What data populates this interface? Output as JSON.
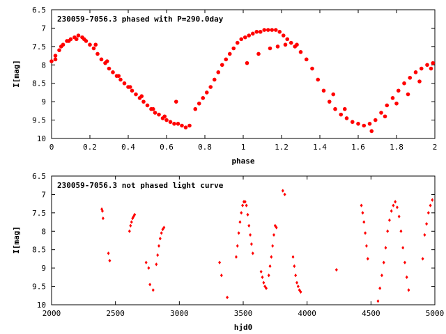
{
  "colors": {
    "points": "#ff0000",
    "frame": "#000000",
    "background": "#ffffff"
  },
  "chart_data": [
    {
      "type": "scatter",
      "title": "230059-7056.3 phased with P=290.0day",
      "xlabel": "phase",
      "ylabel": "I[mag]",
      "xlim": [
        0,
        2
      ],
      "ylim": [
        6.5,
        10
      ],
      "y_inverted": true,
      "grid": false,
      "marker": "circle",
      "xticks": [
        "0",
        "0.2",
        "0.4",
        "0.6",
        "0.8",
        "1",
        "1.2",
        "1.4",
        "1.6",
        "1.8",
        "2"
      ],
      "yticks": [
        "6.5",
        "7",
        "7.5",
        "8",
        "8.5",
        "9",
        "9.5",
        "10"
      ],
      "series": [
        {
          "x": [
            0.0,
            0.02,
            0.04,
            0.06,
            0.08,
            0.1,
            0.12,
            0.14,
            0.16,
            0.18,
            0.2,
            0.22,
            0.24,
            0.26,
            0.28,
            0.3,
            0.32,
            0.34,
            0.36,
            0.38,
            0.4,
            0.42,
            0.44,
            0.46,
            0.48,
            0.5,
            0.52,
            0.54,
            0.56,
            0.58,
            0.6,
            0.62,
            0.64,
            0.66,
            0.68,
            0.7,
            0.72,
            0.75,
            0.77,
            0.79,
            0.81,
            0.83,
            0.85,
            0.87,
            0.89,
            0.91,
            0.93,
            0.95,
            0.97,
            0.99,
            1.01,
            1.03,
            1.05,
            1.07,
            1.09,
            1.11,
            1.13,
            1.15,
            1.17,
            1.19,
            1.21,
            1.23,
            1.25,
            1.27,
            1.3,
            1.33,
            1.36,
            1.39,
            1.42,
            1.45,
            1.48,
            1.51,
            1.54,
            1.57,
            1.6,
            1.63,
            1.66,
            1.69,
            1.72,
            1.75,
            1.78,
            1.81,
            1.84,
            1.87,
            1.9,
            1.93,
            1.96,
            1.99,
            0.02,
            0.05,
            0.09,
            0.13,
            0.17,
            0.23,
            0.29,
            0.35,
            0.41,
            0.47,
            0.53,
            0.59,
            0.65,
            1.02,
            1.08,
            1.14,
            1.18,
            1.22,
            1.28,
            1.47,
            1.53,
            1.67,
            1.74,
            1.8,
            1.86,
            1.92,
            1.98
          ],
          "y": [
            7.9,
            7.75,
            7.6,
            7.45,
            7.35,
            7.3,
            7.25,
            7.2,
            7.25,
            7.35,
            7.45,
            7.55,
            7.7,
            7.85,
            7.95,
            8.1,
            8.2,
            8.3,
            8.4,
            8.5,
            8.6,
            8.7,
            8.8,
            8.9,
            9.0,
            9.1,
            9.2,
            9.3,
            9.35,
            9.45,
            9.5,
            9.55,
            9.6,
            9.6,
            9.65,
            9.7,
            9.65,
            9.2,
            9.05,
            8.9,
            8.75,
            8.6,
            8.4,
            8.2,
            8.0,
            7.85,
            7.7,
            7.55,
            7.4,
            7.3,
            7.25,
            7.2,
            7.15,
            7.1,
            7.1,
            7.05,
            7.05,
            7.05,
            7.05,
            7.1,
            7.2,
            7.3,
            7.4,
            7.5,
            7.65,
            7.85,
            8.1,
            8.4,
            8.7,
            9.0,
            9.2,
            9.35,
            9.45,
            9.55,
            9.6,
            9.65,
            9.6,
            9.5,
            9.3,
            9.1,
            8.9,
            8.7,
            8.5,
            8.35,
            8.2,
            8.1,
            8.0,
            7.95,
            7.85,
            7.5,
            7.35,
            7.3,
            7.3,
            7.45,
            7.9,
            8.3,
            8.6,
            8.85,
            9.2,
            9.4,
            9.0,
            7.95,
            7.7,
            7.55,
            7.5,
            7.45,
            7.45,
            8.8,
            9.2,
            9.8,
            9.4,
            9.05,
            8.8,
            8.45,
            8.1
          ]
        }
      ]
    },
    {
      "type": "scatter",
      "title": "230059-7056.3 not phased light curve",
      "xlabel": "hjd0",
      "ylabel": "I[mag]",
      "xlim": [
        2000,
        5000
      ],
      "ylim": [
        6.5,
        10
      ],
      "y_inverted": true,
      "grid": false,
      "marker": "diamond",
      "xticks": [
        "2000",
        "2500",
        "3000",
        "3500",
        "4000",
        "4500",
        "5000"
      ],
      "yticks": [
        "6.5",
        "7",
        "7.5",
        "8",
        "8.5",
        "9",
        "9.5",
        "10"
      ],
      "series": [
        {
          "x": [
            2393,
            2398,
            2403,
            2445,
            2455,
            2610,
            2618,
            2626,
            2634,
            2642,
            2650,
            2740,
            2760,
            2770,
            2795,
            2820,
            2830,
            2840,
            2850,
            2860,
            2870,
            2880,
            3315,
            3330,
            3375,
            3445,
            3455,
            3465,
            3475,
            3485,
            3495,
            3505,
            3515,
            3525,
            3535,
            3545,
            3555,
            3565,
            3575,
            3640,
            3650,
            3660,
            3670,
            3680,
            3700,
            3710,
            3720,
            3730,
            3740,
            3750,
            3760,
            3810,
            3825,
            3890,
            3900,
            3910,
            3920,
            3930,
            3940,
            3950,
            4230,
            4425,
            4435,
            4445,
            4455,
            4465,
            4475,
            4555,
            4570,
            4585,
            4600,
            4615,
            4630,
            4645,
            4660,
            4675,
            4690,
            4705,
            4720,
            4735,
            4750,
            4765,
            4780,
            4795,
            4905,
            4920,
            4935,
            4950,
            4965,
            4980
          ],
          "y": [
            7.4,
            7.45,
            7.65,
            8.6,
            8.8,
            8.0,
            7.85,
            7.75,
            7.65,
            7.6,
            7.55,
            8.85,
            9.0,
            9.45,
            9.6,
            8.9,
            8.65,
            8.4,
            8.2,
            8.05,
            7.95,
            7.9,
            8.85,
            9.2,
            9.8,
            8.7,
            8.4,
            8.05,
            7.75,
            7.5,
            7.3,
            7.2,
            7.2,
            7.3,
            7.55,
            7.85,
            8.1,
            8.35,
            8.6,
            9.1,
            9.25,
            9.4,
            9.5,
            9.55,
            9.2,
            8.95,
            8.7,
            8.4,
            8.1,
            7.85,
            7.9,
            6.9,
            7.0,
            8.7,
            8.95,
            9.2,
            9.4,
            9.5,
            9.6,
            9.65,
            9.05,
            7.3,
            7.5,
            7.75,
            8.05,
            8.4,
            8.75,
            9.9,
            9.55,
            9.2,
            8.85,
            8.45,
            8.0,
            7.7,
            7.45,
            7.3,
            7.2,
            7.35,
            7.6,
            8.0,
            8.45,
            8.85,
            9.25,
            9.6,
            8.75,
            8.1,
            7.8,
            7.5,
            7.3,
            7.15
          ]
        }
      ]
    }
  ]
}
